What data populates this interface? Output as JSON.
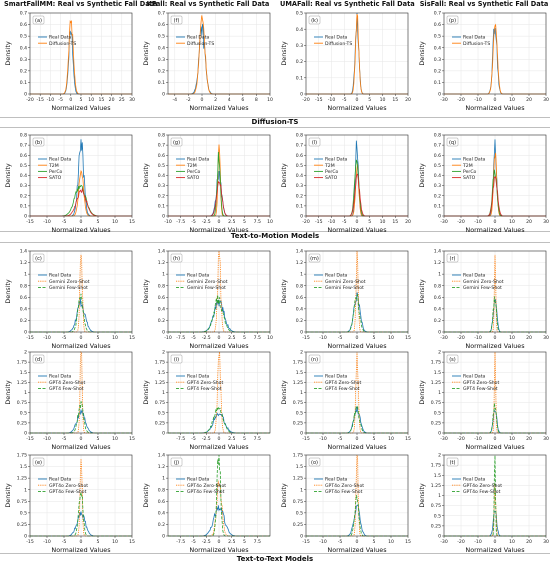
{
  "column_titles": [
    "SmartFallMM: Real vs Synthetic Fall Data",
    "KFall: Real vs Synthetic Fall Data",
    "UMAFall: Real vs Synthetic Fall Data",
    "SisFall: Real vs Synthetic Fall Data"
  ],
  "section_titles": [
    "Diffusion-TS",
    "Text-to-Motion Models",
    "Text-to-Text Models"
  ],
  "colors": {
    "real": "#1f77b4",
    "synth1": "#ff7f0e",
    "synth2": "#2ca02c",
    "synth3": "#d62728",
    "frame": "#333333"
  },
  "chart_data": [
    {
      "panel": "(a)",
      "type": "line",
      "xlabel": "Normalized Values",
      "ylabel": "Density",
      "xlim": [
        -20,
        30
      ],
      "ylim": [
        0,
        0.7
      ],
      "xticks": [
        -20,
        -15,
        -10,
        -5,
        0,
        5,
        10,
        15,
        20,
        25,
        30
      ],
      "yticks": [
        0.0,
        0.1,
        0.2,
        0.3,
        0.4,
        0.5,
        0.6,
        0.7
      ],
      "series": [
        {
          "name": "Real Data",
          "peak": 0.58,
          "width": 1.0,
          "style": "solid"
        },
        {
          "name": "Diffusion-TS",
          "peak": 0.62,
          "width": 1.1,
          "style": "solid"
        }
      ]
    },
    {
      "panel": "(f)",
      "type": "line",
      "xlabel": "Normalized Values",
      "ylabel": "Density",
      "xlim": [
        -5,
        10
      ],
      "ylim": [
        0,
        0.7
      ],
      "xticks": [
        -4,
        -2,
        0,
        2,
        4,
        6,
        8,
        10
      ],
      "yticks": [
        0.0,
        0.1,
        0.2,
        0.3,
        0.4,
        0.5,
        0.6,
        0.7
      ],
      "series": [
        {
          "name": "Real Data",
          "peak": 0.55,
          "width": 0.45,
          "style": "solid"
        },
        {
          "name": "Diffusion-TS",
          "peak": 0.65,
          "width": 0.4,
          "style": "solid"
        }
      ]
    },
    {
      "panel": "(k)",
      "type": "line",
      "xlabel": "Normalized Values",
      "ylabel": "Density",
      "xlim": [
        -20,
        20
      ],
      "ylim": [
        0,
        0.5
      ],
      "xticks": [
        -20,
        -15,
        -10,
        -5,
        0,
        5,
        10,
        15,
        20
      ],
      "yticks": [
        0.0,
        0.1,
        0.2,
        0.3,
        0.4,
        0.5
      ],
      "series": [
        {
          "name": "Real Data",
          "peak": 0.45,
          "width": 0.7,
          "style": "solid"
        },
        {
          "name": "Diffusion-TS",
          "peak": 0.47,
          "width": 0.65,
          "style": "solid"
        }
      ]
    },
    {
      "panel": "(p)",
      "type": "line",
      "xlabel": "Normalized Values",
      "ylabel": "Density",
      "xlim": [
        -30,
        30
      ],
      "ylim": [
        0,
        0.7
      ],
      "xticks": [
        -30,
        -20,
        -10,
        0,
        10,
        20,
        30
      ],
      "yticks": [
        0.0,
        0.1,
        0.2,
        0.3,
        0.4,
        0.5,
        0.6,
        0.7
      ],
      "series": [
        {
          "name": "Real Data",
          "peak": 0.6,
          "width": 1.2,
          "style": "solid"
        },
        {
          "name": "Diffusion-TS",
          "peak": 0.62,
          "width": 1.2,
          "style": "solid"
        }
      ]
    },
    {
      "panel": "(b)",
      "type": "line",
      "xlabel": "Normalized Values",
      "ylabel": "Density",
      "xlim": [
        -15,
        15
      ],
      "ylim": [
        0,
        0.8
      ],
      "xticks": [
        -15,
        -10,
        -5,
        0,
        5,
        10,
        15
      ],
      "yticks": [
        0.0,
        0.1,
        0.2,
        0.3,
        0.4,
        0.5,
        0.6,
        0.7,
        0.8
      ],
      "series": [
        {
          "name": "Real Data",
          "peak": 0.7,
          "width": 0.8,
          "style": "solid"
        },
        {
          "name": "T2M",
          "peak": 0.45,
          "width": 0.7,
          "style": "solid"
        },
        {
          "name": "PerCo",
          "peak": 0.3,
          "width": 1.6,
          "style": "solid"
        },
        {
          "name": "SATO",
          "peak": 0.25,
          "width": 1.4,
          "style": "solid"
        }
      ]
    },
    {
      "panel": "(g)",
      "type": "line",
      "xlabel": "Normalized Values",
      "ylabel": "Density",
      "xlim": [
        -10,
        10
      ],
      "ylim": [
        0,
        0.8
      ],
      "xticks": [
        -10.0,
        -7.5,
        -5.0,
        -2.5,
        0.0,
        2.5,
        5.0,
        7.5,
        10.0
      ],
      "yticks": [
        0.0,
        0.1,
        0.2,
        0.3,
        0.4,
        0.5,
        0.6,
        0.7,
        0.8
      ],
      "series": [
        {
          "name": "Real Data",
          "peak": 0.42,
          "width": 0.5,
          "style": "solid"
        },
        {
          "name": "T2M",
          "peak": 0.72,
          "width": 0.22,
          "style": "solid"
        },
        {
          "name": "PerCo",
          "peak": 0.6,
          "width": 0.3,
          "style": "solid"
        },
        {
          "name": "SATO",
          "peak": 0.35,
          "width": 0.5,
          "style": "solid"
        }
      ]
    },
    {
      "panel": "(l)",
      "type": "line",
      "xlabel": "Normalized Values",
      "ylabel": "Density",
      "xlim": [
        -20,
        20
      ],
      "ylim": [
        0,
        0.8
      ],
      "xticks": [
        -20,
        -15,
        -10,
        -5,
        0,
        5,
        10,
        15,
        20
      ],
      "yticks": [
        0.0,
        0.1,
        0.2,
        0.3,
        0.4,
        0.5,
        0.6,
        0.7,
        0.8
      ],
      "series": [
        {
          "name": "Real Data",
          "peak": 0.72,
          "width": 0.6,
          "style": "solid"
        },
        {
          "name": "T2M",
          "peak": 0.5,
          "width": 0.6,
          "style": "solid"
        },
        {
          "name": "PerCo",
          "peak": 0.55,
          "width": 0.8,
          "style": "solid"
        },
        {
          "name": "SATO",
          "peak": 0.4,
          "width": 0.9,
          "style": "solid"
        }
      ]
    },
    {
      "panel": "(q)",
      "type": "line",
      "xlabel": "Normalized Values",
      "ylabel": "Density",
      "xlim": [
        -30,
        30
      ],
      "ylim": [
        0,
        0.8
      ],
      "xticks": [
        -30,
        -20,
        -10,
        0,
        10,
        20,
        30
      ],
      "yticks": [
        0.0,
        0.1,
        0.2,
        0.3,
        0.4,
        0.5,
        0.6,
        0.7,
        0.8
      ],
      "series": [
        {
          "name": "Real Data",
          "peak": 0.68,
          "width": 1.0,
          "style": "solid"
        },
        {
          "name": "T2M",
          "peak": 0.6,
          "width": 0.9,
          "style": "solid"
        },
        {
          "name": "PerCo",
          "peak": 0.45,
          "width": 1.2,
          "style": "solid"
        },
        {
          "name": "SATO",
          "peak": 0.4,
          "width": 1.3,
          "style": "solid"
        }
      ]
    },
    {
      "panel": "(c)",
      "type": "line",
      "xlabel": "Normalized Values",
      "ylabel": "Density",
      "xlim": [
        -15,
        15
      ],
      "ylim": [
        0,
        1.4
      ],
      "xticks": [
        -15,
        -10,
        -5,
        0,
        5,
        10,
        15
      ],
      "yticks": [
        0.0,
        0.2,
        0.4,
        0.6,
        0.8,
        1.0,
        1.2,
        1.4
      ],
      "series": [
        {
          "name": "Real Data",
          "peak": 0.5,
          "width": 1.2,
          "style": "solid"
        },
        {
          "name": "Gemini Zero-Shot",
          "peak": 1.4,
          "width": 0.35,
          "style": "dotted"
        },
        {
          "name": "Gemini Few-Shot",
          "peak": 0.6,
          "width": 0.8,
          "style": "dashed"
        }
      ]
    },
    {
      "panel": "(h)",
      "type": "line",
      "xlabel": "Normalized Values",
      "ylabel": "Density",
      "xlim": [
        -10,
        10
      ],
      "ylim": [
        0,
        1.4
      ],
      "xticks": [
        -10.0,
        -7.5,
        -5.0,
        -2.5,
        0.0,
        2.5,
        5.0,
        7.5,
        10.0
      ],
      "yticks": [
        0.0,
        0.2,
        0.4,
        0.6,
        0.8,
        1.0,
        1.2,
        1.4
      ],
      "series": [
        {
          "name": "Real Data",
          "peak": 0.5,
          "width": 1.0,
          "style": "solid"
        },
        {
          "name": "Gemini Zero-Shot",
          "peak": 1.35,
          "width": 0.3,
          "style": "dotted"
        },
        {
          "name": "Gemini Few-Shot",
          "peak": 0.55,
          "width": 0.9,
          "style": "dashed"
        }
      ]
    },
    {
      "panel": "(m)",
      "type": "line",
      "xlabel": "Normalized Values",
      "ylabel": "Density",
      "xlim": [
        -15,
        15
      ],
      "ylim": [
        0,
        1.4
      ],
      "xticks": [
        -15,
        -10,
        -5,
        0,
        5,
        10,
        15
      ],
      "yticks": [
        0.0,
        0.2,
        0.4,
        0.6,
        0.8,
        1.0,
        1.2,
        1.4
      ],
      "series": [
        {
          "name": "Real Data",
          "peak": 0.6,
          "width": 0.9,
          "style": "solid"
        },
        {
          "name": "Gemini Zero-Shot",
          "peak": 1.4,
          "width": 0.3,
          "style": "dotted"
        },
        {
          "name": "Gemini Few-Shot",
          "peak": 0.6,
          "width": 0.8,
          "style": "dashed"
        }
      ]
    },
    {
      "panel": "(r)",
      "type": "line",
      "xlabel": "Normalized Values",
      "ylabel": "Density",
      "xlim": [
        -30,
        30
      ],
      "ylim": [
        0,
        1.4
      ],
      "xticks": [
        -30,
        -20,
        -10,
        0,
        10,
        20,
        30
      ],
      "yticks": [
        0.0,
        0.2,
        0.4,
        0.6,
        0.8,
        1.0,
        1.2,
        1.4
      ],
      "series": [
        {
          "name": "Real Data",
          "peak": 0.6,
          "width": 1.0,
          "style": "solid"
        },
        {
          "name": "Gemini Zero-Shot",
          "peak": 1.4,
          "width": 0.4,
          "style": "dotted"
        },
        {
          "name": "Gemini Few-Shot",
          "peak": 0.6,
          "width": 0.9,
          "style": "dashed"
        }
      ]
    },
    {
      "panel": "(d)",
      "type": "line",
      "xlabel": "Normalized Values",
      "ylabel": "Density",
      "xlim": [
        -15,
        15
      ],
      "ylim": [
        0,
        2.0
      ],
      "xticks": [
        -15,
        -10,
        -5,
        0,
        5,
        10,
        15
      ],
      "yticks": [
        0.0,
        0.25,
        0.5,
        0.75,
        1.0,
        1.25,
        1.5,
        1.75,
        2.0
      ],
      "series": [
        {
          "name": "Real Data",
          "peak": 0.5,
          "width": 1.2,
          "style": "solid"
        },
        {
          "name": "GPT4 Zero-Shot",
          "peak": 2.0,
          "width": 0.3,
          "style": "dotted"
        },
        {
          "name": "GPT4 Few-Shot",
          "peak": 0.7,
          "width": 0.8,
          "style": "dashed"
        }
      ]
    },
    {
      "panel": "(i)",
      "type": "line",
      "xlabel": "Normalized Values",
      "ylabel": "Density",
      "xlim": [
        -10,
        10
      ],
      "ylim": [
        0,
        2.0
      ],
      "xticks": [
        -7.5,
        -5.0,
        -2.5,
        0.0,
        2.5,
        5.0,
        7.5
      ],
      "yticks": [
        0.0,
        0.25,
        0.5,
        0.75,
        1.0,
        1.25,
        1.5,
        1.75,
        2.0
      ],
      "series": [
        {
          "name": "Real Data",
          "peak": 0.5,
          "width": 1.0,
          "style": "solid"
        },
        {
          "name": "GPT4 Zero-Shot",
          "peak": 2.0,
          "width": 0.3,
          "style": "dotted"
        },
        {
          "name": "GPT4 Few-Shot",
          "peak": 0.6,
          "width": 0.9,
          "style": "dashed"
        }
      ]
    },
    {
      "panel": "(n)",
      "type": "line",
      "xlabel": "Normalized Values",
      "ylabel": "Density",
      "xlim": [
        -15,
        15
      ],
      "ylim": [
        0,
        2.0
      ],
      "xticks": [
        -15,
        -10,
        -5,
        0,
        5,
        10,
        15
      ],
      "yticks": [
        0.0,
        0.25,
        0.5,
        0.75,
        1.0,
        1.25,
        1.5,
        1.75,
        2.0
      ],
      "series": [
        {
          "name": "Real Data",
          "peak": 0.6,
          "width": 0.9,
          "style": "solid"
        },
        {
          "name": "GPT4 Zero-Shot",
          "peak": 2.0,
          "width": 0.35,
          "style": "dotted"
        },
        {
          "name": "GPT4 Few-Shot",
          "peak": 0.6,
          "width": 0.8,
          "style": "dashed"
        }
      ]
    },
    {
      "panel": "(s)",
      "type": "line",
      "xlabel": "Normalized Values",
      "ylabel": "Density",
      "xlim": [
        -30,
        30
      ],
      "ylim": [
        0,
        2.0
      ],
      "xticks": [
        -30,
        -20,
        -10,
        0,
        10,
        20,
        30
      ],
      "yticks": [
        0.0,
        0.25,
        0.5,
        0.75,
        1.0,
        1.25,
        1.5,
        1.75,
        2.0
      ],
      "series": [
        {
          "name": "Real Data",
          "peak": 0.6,
          "width": 1.0,
          "style": "solid"
        },
        {
          "name": "GPT4 Zero-Shot",
          "peak": 2.0,
          "width": 0.4,
          "style": "dotted"
        },
        {
          "name": "GPT4 Few-Shot",
          "peak": 0.7,
          "width": 0.9,
          "style": "dashed"
        }
      ]
    },
    {
      "panel": "(e)",
      "type": "line",
      "xlabel": "Normalized Values",
      "ylabel": "Density",
      "xlim": [
        -15,
        15
      ],
      "ylim": [
        0,
        1.75
      ],
      "xticks": [
        -15,
        -10,
        -5,
        0,
        5,
        10,
        15
      ],
      "yticks": [
        0.0,
        0.25,
        0.5,
        0.75,
        1.0,
        1.25,
        1.5,
        1.75
      ],
      "series": [
        {
          "name": "Real Data",
          "peak": 0.5,
          "width": 1.2,
          "style": "solid"
        },
        {
          "name": "GPT4o Zero-Shot",
          "peak": 1.75,
          "width": 0.3,
          "style": "dotted"
        },
        {
          "name": "GPT4o Few-Shot",
          "peak": 1.0,
          "width": 0.6,
          "style": "dashed"
        }
      ]
    },
    {
      "panel": "(j)",
      "type": "line",
      "xlabel": "Normalized Values",
      "ylabel": "Density",
      "xlim": [
        -10,
        10
      ],
      "ylim": [
        0,
        1.4
      ],
      "xticks": [
        -7.5,
        -5.0,
        -2.5,
        0.0,
        2.5,
        5.0,
        7.5
      ],
      "yticks": [
        0.0,
        0.2,
        0.4,
        0.6,
        0.8,
        1.0,
        1.2,
        1.4
      ],
      "series": [
        {
          "name": "Real Data",
          "peak": 0.5,
          "width": 1.0,
          "style": "solid"
        },
        {
          "name": "GPT4o Zero-Shot",
          "peak": 0.9,
          "width": 0.5,
          "style": "dotted"
        },
        {
          "name": "GPT4o Few-Shot",
          "peak": 1.4,
          "width": 0.35,
          "style": "dashed"
        }
      ]
    },
    {
      "panel": "(o)",
      "type": "line",
      "xlabel": "Normalized Values",
      "ylabel": "Density",
      "xlim": [
        -15,
        15
      ],
      "ylim": [
        0,
        1.75
      ],
      "xticks": [
        -15,
        -10,
        -5,
        0,
        5,
        10,
        15
      ],
      "yticks": [
        0.0,
        0.25,
        0.5,
        0.75,
        1.0,
        1.25,
        1.5,
        1.75
      ],
      "series": [
        {
          "name": "Real Data",
          "peak": 0.6,
          "width": 0.9,
          "style": "solid"
        },
        {
          "name": "GPT4o Zero-Shot",
          "peak": 1.75,
          "width": 0.3,
          "style": "dotted"
        },
        {
          "name": "GPT4o Few-Shot",
          "peak": 0.8,
          "width": 0.6,
          "style": "dashed"
        }
      ]
    },
    {
      "panel": "(t)",
      "type": "line",
      "xlabel": "Normalized Values",
      "ylabel": "Density",
      "xlim": [
        -30,
        30
      ],
      "ylim": [
        0,
        2.0
      ],
      "xticks": [
        -30,
        -20,
        -10,
        0,
        10,
        20,
        30
      ],
      "yticks": [
        0.0,
        0.25,
        0.5,
        0.75,
        1.0,
        1.25,
        1.5,
        1.75,
        2.0
      ],
      "series": [
        {
          "name": "Real Data",
          "peak": 0.6,
          "width": 1.0,
          "style": "solid"
        },
        {
          "name": "GPT4o Zero-Shot",
          "peak": 1.2,
          "width": 0.5,
          "style": "dotted"
        },
        {
          "name": "GPT4o Few-Shot",
          "peak": 1.9,
          "width": 0.35,
          "style": "dashed"
        }
      ]
    }
  ]
}
